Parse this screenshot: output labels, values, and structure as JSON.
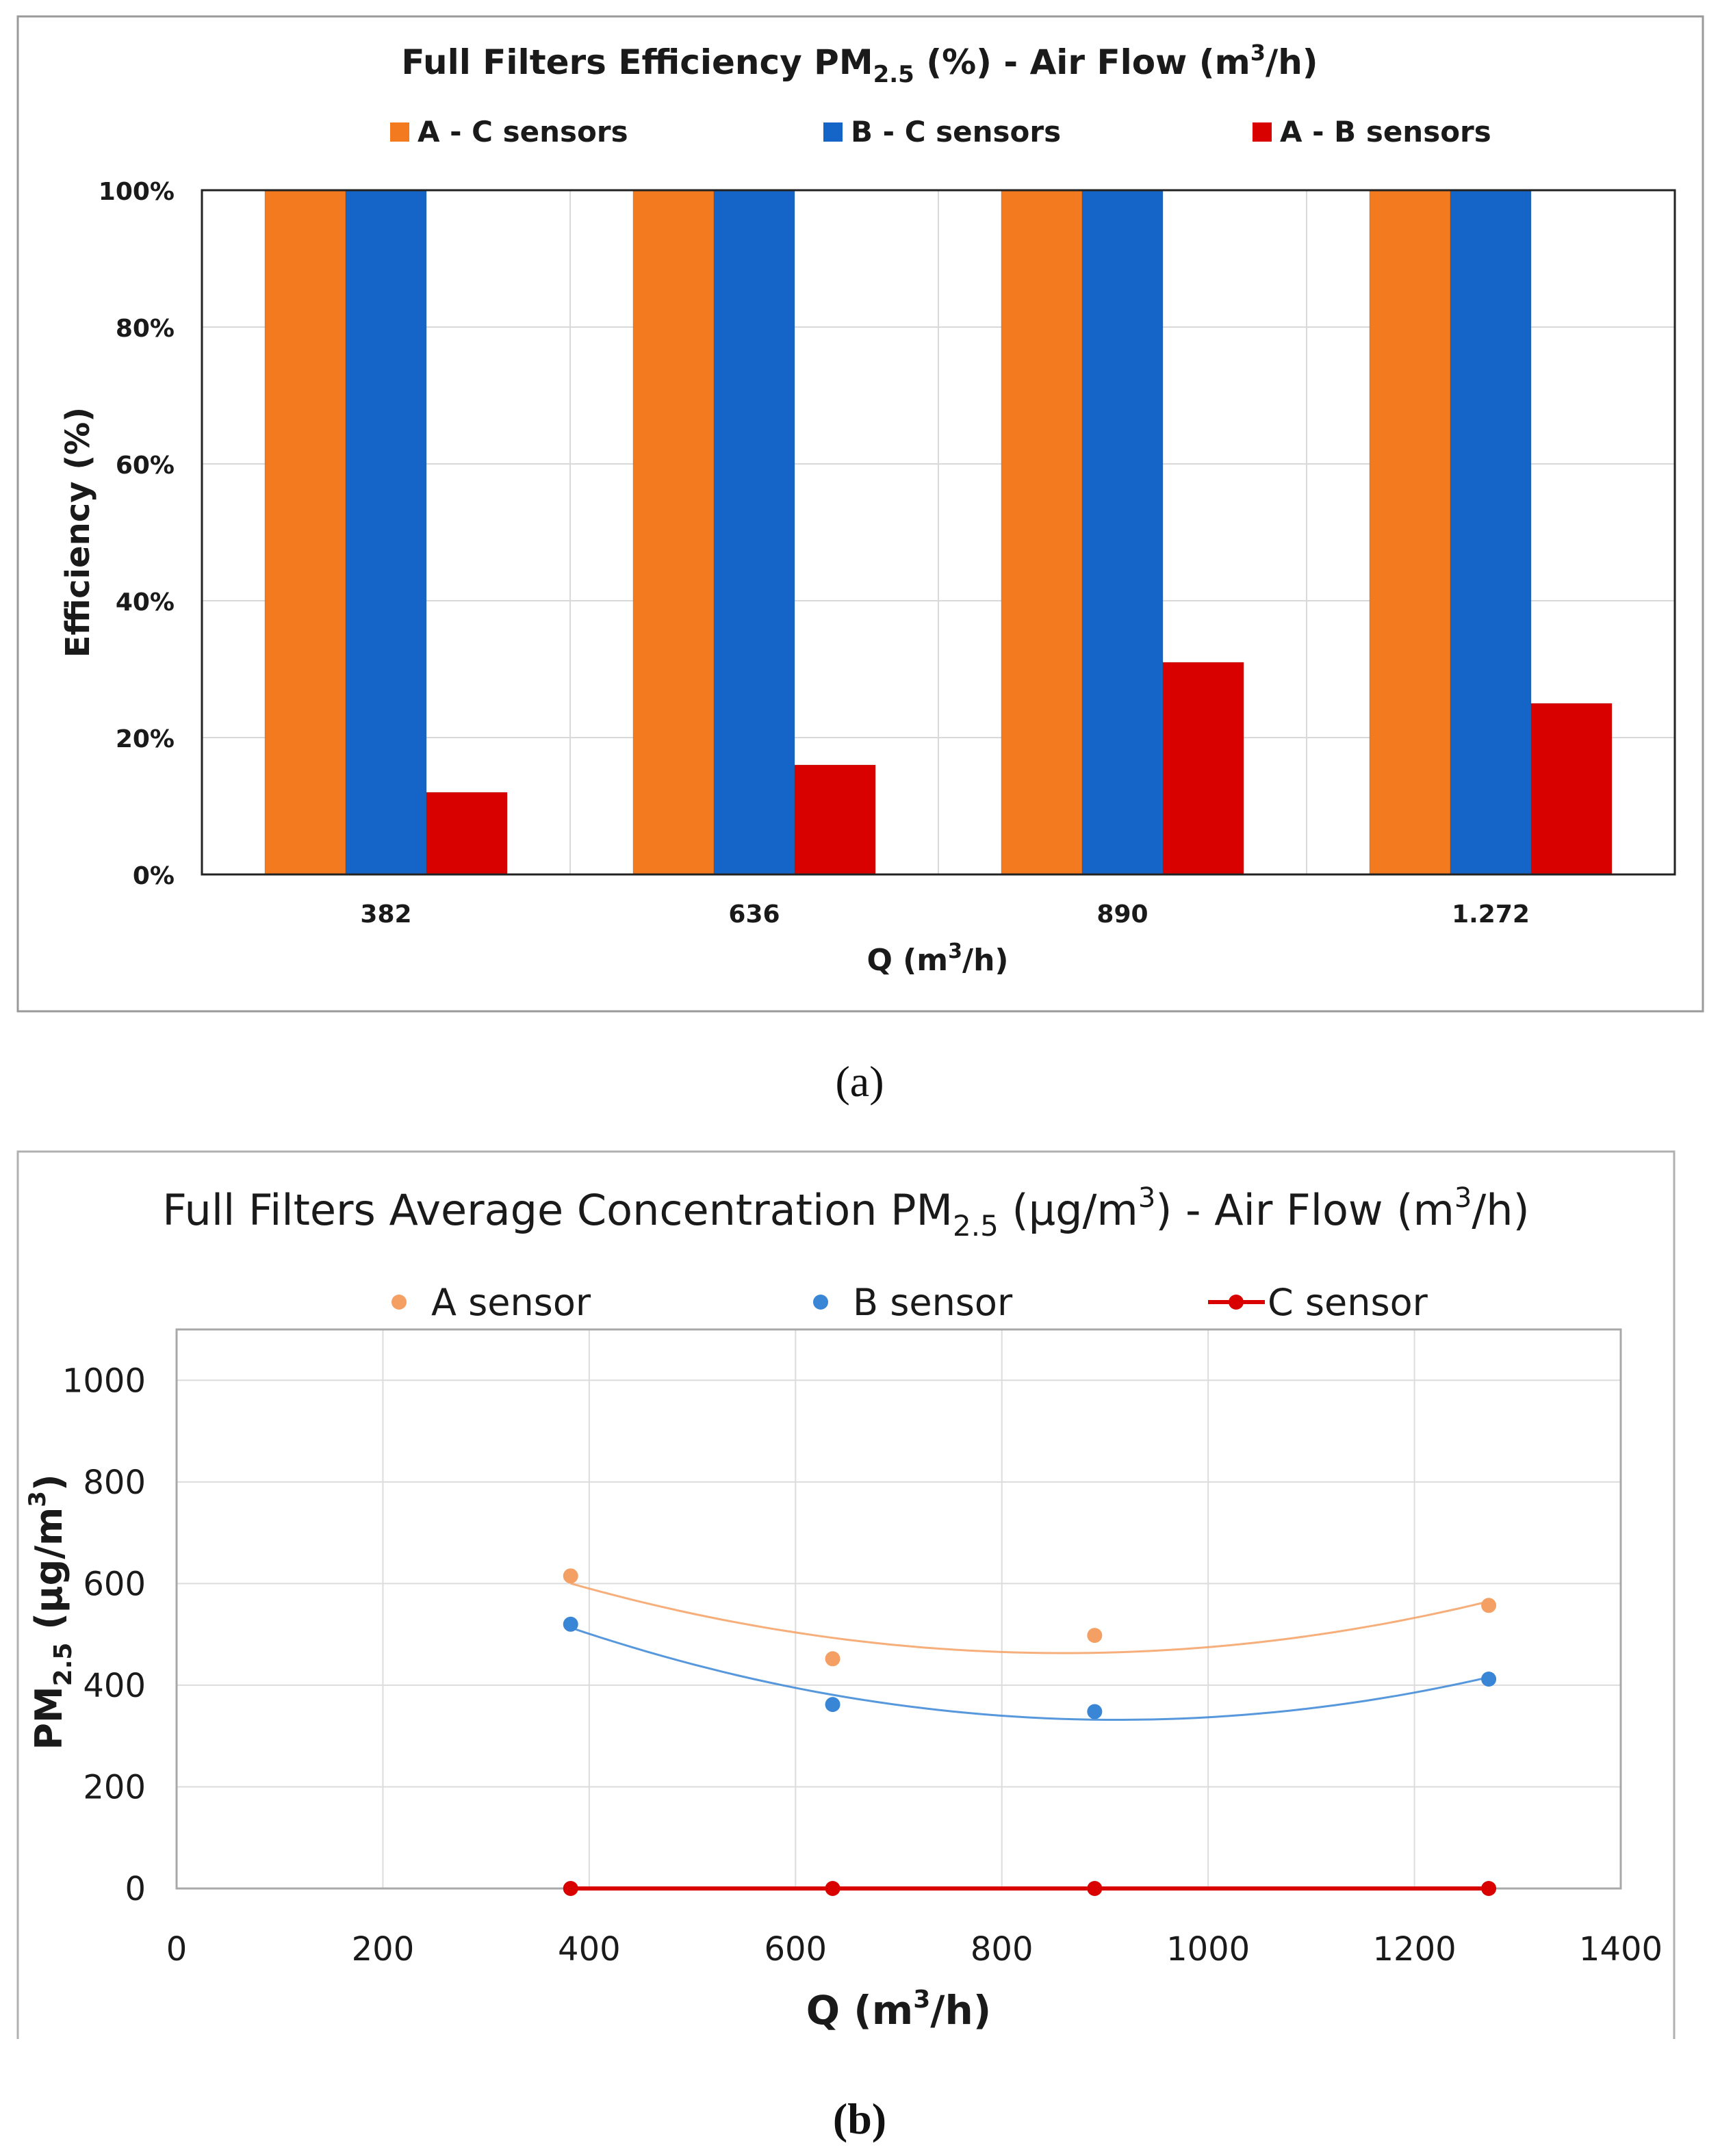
{
  "chart_data": [
    {
      "type": "bar",
      "title_main": "Full Filters Efficiency PM",
      "title_sub": "2.5",
      "title_rest": " (%) - Air Flow (m",
      "title_sup": "3",
      "title_end": "/h)",
      "categories": [
        "382",
        "636",
        "890",
        "1.272"
      ],
      "series": [
        {
          "name": "A - C sensors",
          "color": "#f47a20",
          "values": [
            100,
            100,
            100,
            100
          ]
        },
        {
          "name": "B - C sensors",
          "color": "#1565c8",
          "values": [
            100,
            100,
            100,
            100
          ]
        },
        {
          "name": "A - B sensors",
          "color": "#d90000",
          "values": [
            12,
            16,
            31,
            25
          ]
        }
      ],
      "ylim": [
        0,
        100
      ],
      "yticks": [
        "0%",
        "20%",
        "40%",
        "60%",
        "80%",
        "100%"
      ],
      "ylabel": "Efficiency (%)",
      "xlabel_main": "Q (m",
      "xlabel_sup": "3",
      "xlabel_end": "/h)",
      "legend_position": "top",
      "grid": true,
      "panel_label": "(a)"
    },
    {
      "type": "scatter",
      "title_main": "Full Filters Average Concentration PM",
      "title_sub": "2.5",
      "title_rest": " (µg/m",
      "title_sup": "3",
      "title_mid": ") - Air Flow (m",
      "title_sup2": "3",
      "title_end": "/h)",
      "x": [
        382,
        636,
        890,
        1272
      ],
      "series": [
        {
          "name": "A sensor",
          "color": "#f4a064",
          "marker": "point",
          "values": [
            615,
            452,
            498,
            557
          ],
          "trendline": "polynomial-2"
        },
        {
          "name": "B sensor",
          "color": "#3a86d6",
          "marker": "point",
          "values": [
            520,
            362,
            348,
            412
          ],
          "trendline": "polynomial-2"
        },
        {
          "name": "C sensor",
          "color": "#d90000",
          "marker": "line-point",
          "values": [
            0,
            0,
            0,
            0
          ]
        }
      ],
      "xlim": [
        0,
        1400
      ],
      "ylim": [
        0,
        1100
      ],
      "xticks": [
        0,
        200,
        400,
        600,
        800,
        1000,
        1200,
        1400
      ],
      "yticks": [
        0,
        200,
        400,
        600,
        800,
        1000
      ],
      "ylabel_main": "PM",
      "ylabel_sub": "2.5",
      "ylabel_rest": " (µg/m",
      "ylabel_sup": "3",
      "ylabel_end": ")",
      "xlabel_main": "Q (m",
      "xlabel_sup": "3",
      "xlabel_end": "/h)",
      "legend_position": "top",
      "grid": true,
      "panel_label": "(b)"
    }
  ]
}
